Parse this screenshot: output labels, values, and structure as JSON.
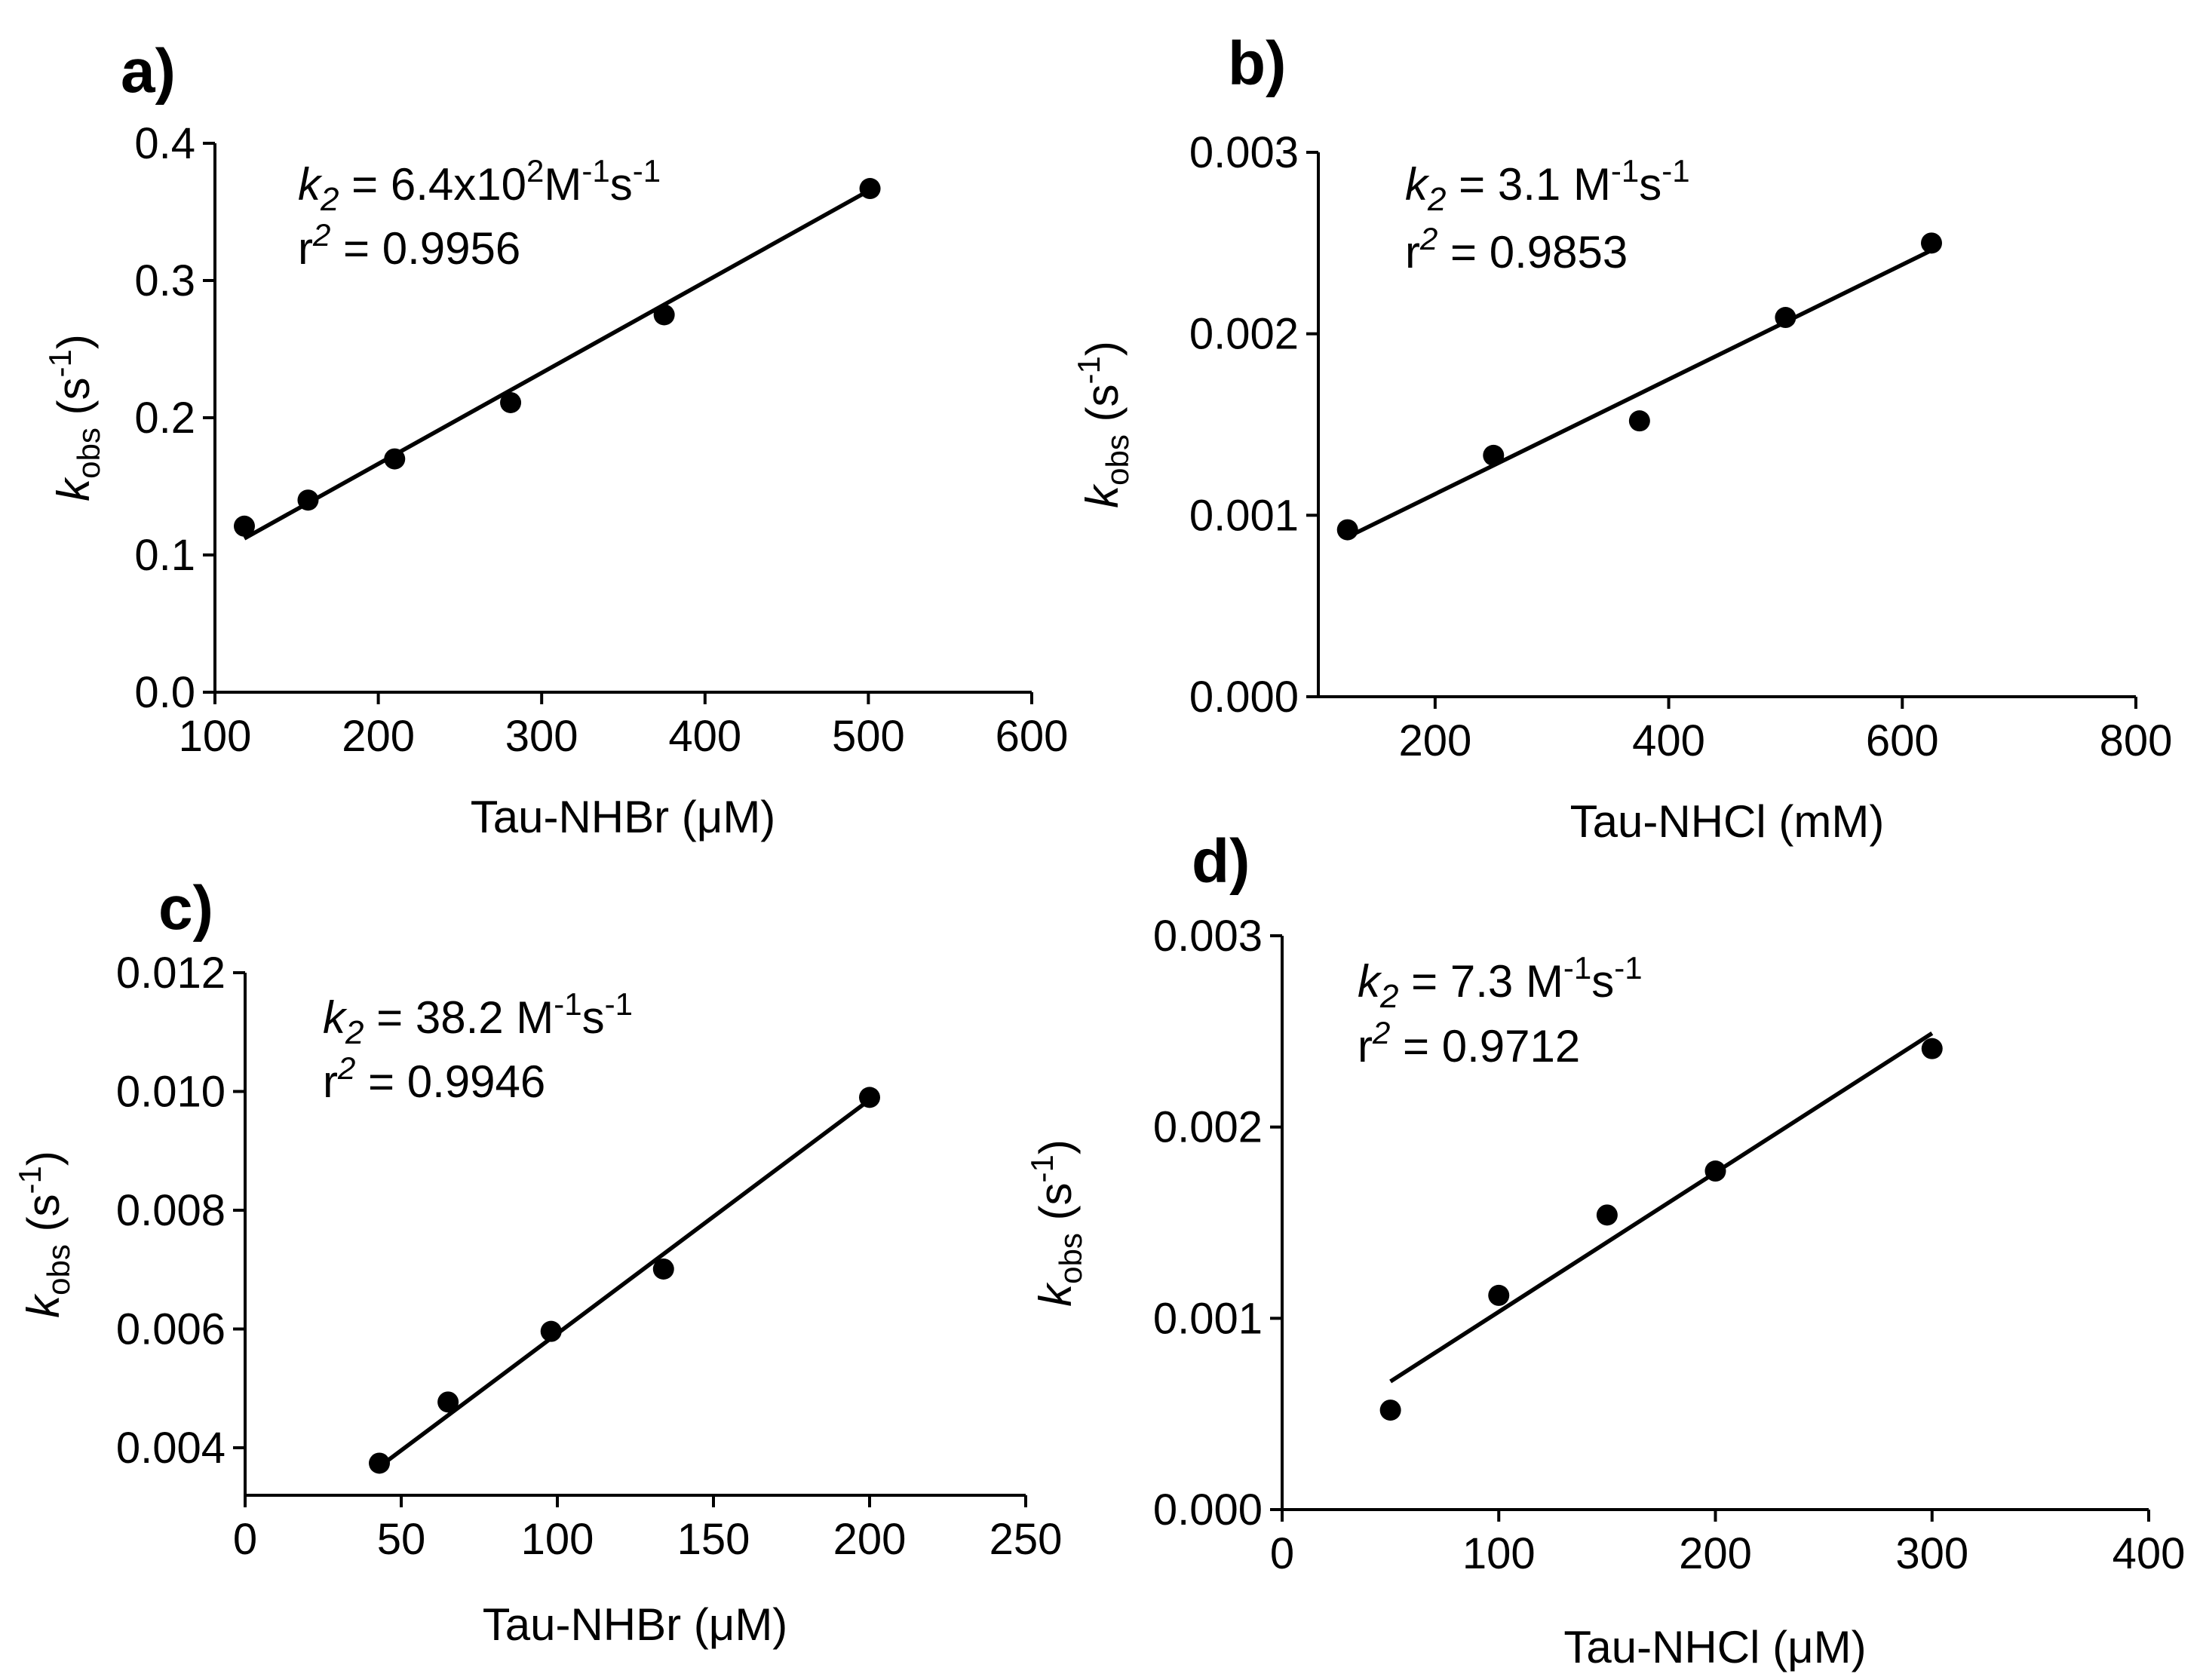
{
  "chart_data": [
    {
      "type": "scatter",
      "panel_label": "a)",
      "xlabel": "Tau-NHBr (μM)",
      "ylabel_main": "k",
      "ylabel_sub": "obs",
      "ylabel_unit": "(s",
      "ylabel_sup": "-1",
      "ylabel_close": ")",
      "xlim": [
        100,
        600
      ],
      "ylim": [
        0.0,
        0.4
      ],
      "xticks": [
        "100",
        "200",
        "300",
        "400",
        "500",
        "600"
      ],
      "yticks": [
        "0.0",
        "0.1",
        "0.2",
        "0.3",
        "0.4"
      ],
      "x": [
        118,
        157,
        210,
        281,
        375,
        501
      ],
      "y": [
        0.121,
        0.14,
        0.17,
        0.211,
        0.275,
        0.367
      ],
      "fit": {
        "x": [
          118,
          501
        ],
        "y": [
          0.112,
          0.366
        ]
      },
      "k2_text": "k",
      "k2_sub": "2",
      "k2_value_pre": " = 6.4x10",
      "k2_value_exp": "2",
      "k2_value_mid": "M",
      "k2_unit_exp1": "-1",
      "k2_unit_s": "s",
      "k2_unit_exp2": "-1",
      "r2_text": "r",
      "r2_sup": "2",
      "r2_value": " = 0.9956"
    },
    {
      "type": "scatter",
      "panel_label": "b)",
      "xlabel": "Tau-NHCl (mM)",
      "ylabel_main": "k",
      "ylabel_sub": "obs",
      "ylabel_unit": "(s",
      "ylabel_sup": "-1",
      "ylabel_close": ")",
      "xlim": [
        100,
        800
      ],
      "ylim": [
        0.0,
        0.003
      ],
      "xticks": [
        "200",
        "400",
        "600",
        "800"
      ],
      "yticks": [
        "0.000",
        "0.001",
        "0.002",
        "0.003"
      ],
      "x": [
        125,
        250,
        375,
        500,
        625
      ],
      "y": [
        0.00092,
        0.00133,
        0.00152,
        0.00209,
        0.0025
      ],
      "fit": {
        "x": [
          125,
          625
        ],
        "y": [
          0.00088,
          0.00246
        ]
      },
      "k2_text": "k",
      "k2_sub": "2",
      "k2_value_pre": " = 3.1 M",
      "k2_value_exp": "",
      "k2_value_mid": "",
      "k2_unit_exp1": "-1",
      "k2_unit_s": "s",
      "k2_unit_exp2": "-1",
      "r2_text": "r",
      "r2_sup": "2",
      "r2_value": " = 0.9853"
    },
    {
      "type": "scatter",
      "panel_label": "c)",
      "xlabel": "Tau-NHBr (μM)",
      "ylabel_main": "k",
      "ylabel_sub": "obs",
      "ylabel_unit": "(s",
      "ylabel_sup": "-1",
      "ylabel_close": ")",
      "xlim": [
        0,
        250
      ],
      "ylim": [
        0.0032,
        0.012
      ],
      "xticks": [
        "0",
        "50",
        "100",
        "150",
        "200",
        "250"
      ],
      "yticks": [
        "0.004",
        "0.006",
        "0.008",
        "0.010",
        "0.012"
      ],
      "x": [
        43,
        65,
        98,
        134,
        200
      ],
      "y": [
        0.00374,
        0.00477,
        0.00596,
        0.00701,
        0.0099
      ],
      "fit": {
        "x": [
          43,
          200
        ],
        "y": [
          0.00368,
          0.00986
        ]
      },
      "k2_text": "k",
      "k2_sub": "2",
      "k2_value_pre": " = 38.2 M",
      "k2_value_exp": "",
      "k2_value_mid": "",
      "k2_unit_exp1": "-1",
      "k2_unit_s": "s",
      "k2_unit_exp2": "-1",
      "r2_text": "r",
      "r2_sup": "2",
      "r2_value": " = 0.9946"
    },
    {
      "type": "scatter",
      "panel_label": "d)",
      "xlabel": "Tau-NHCl (μM)",
      "ylabel_main": "k",
      "ylabel_sub": "obs",
      "ylabel_unit": "(s",
      "ylabel_sup": "-1",
      "ylabel_close": ")",
      "xlim": [
        0,
        400
      ],
      "ylim": [
        0.0,
        0.003
      ],
      "xticks": [
        "0",
        "100",
        "200",
        "300",
        "400"
      ],
      "yticks": [
        "0.000",
        "0.001",
        "0.002",
        "0.003"
      ],
      "x": [
        50,
        100,
        150,
        200,
        300
      ],
      "y": [
        0.00052,
        0.00112,
        0.00154,
        0.00177,
        0.00241
      ],
      "fit": {
        "x": [
          50,
          300
        ],
        "y": [
          0.00067,
          0.00249
        ]
      },
      "k2_text": "k",
      "k2_sub": "2",
      "k2_value_pre": " = 7.3 M",
      "k2_value_exp": "",
      "k2_value_mid": "",
      "k2_unit_exp1": "-1",
      "k2_unit_s": "s",
      "k2_unit_exp2": "-1",
      "r2_text": "r",
      "r2_sup": "2",
      "r2_value": " = 0.9712"
    }
  ]
}
